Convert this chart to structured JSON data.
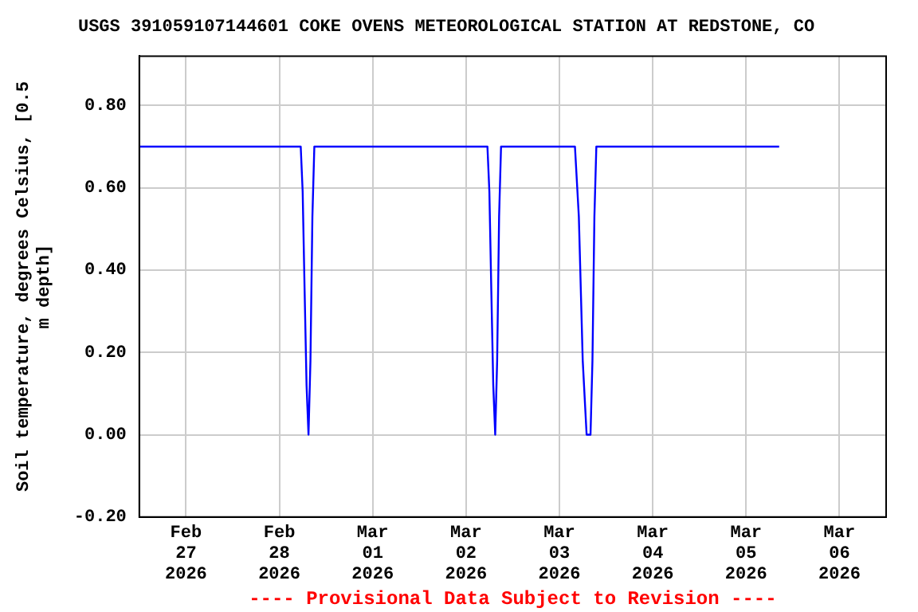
{
  "chart_data": {
    "type": "line",
    "title": "USGS 391059107144601 COKE OVENS METEOROLOGICAL STATION AT REDSTONE, CO",
    "ylabel": "Soil temperature, degrees Celsius, [0.5 m depth]",
    "annotations": [
      "---- Provisional Data Subject to Revision ----"
    ],
    "x": [
      "2026-02-26T12:00",
      "2026-02-28T05:30",
      "2026-02-28T06:00",
      "2026-02-28T06:30",
      "2026-02-28T07:00",
      "2026-02-28T07:30",
      "2026-02-28T08:00",
      "2026-02-28T08:30",
      "2026-02-28T09:00",
      "2026-03-02T05:30",
      "2026-03-02T06:00",
      "2026-03-02T06:30",
      "2026-03-02T07:00",
      "2026-03-02T07:30",
      "2026-03-02T08:00",
      "2026-03-02T08:30",
      "2026-03-02T09:00",
      "2026-03-03T04:00",
      "2026-03-03T05:00",
      "2026-03-03T06:00",
      "2026-03-03T07:00",
      "2026-03-03T08:00",
      "2026-03-03T08:30",
      "2026-03-03T09:00",
      "2026-03-03T09:30",
      "2026-03-05T08:30"
    ],
    "series": [
      {
        "color": "#0000ff",
        "values": [
          0.7,
          0.7,
          0.59,
          0.35,
          0.12,
          0.0,
          0.18,
          0.53,
          0.7,
          0.7,
          0.59,
          0.35,
          0.12,
          0.0,
          0.18,
          0.53,
          0.7,
          0.7,
          0.53,
          0.18,
          0.0,
          0.0,
          0.18,
          0.53,
          0.7,
          0.7
        ]
      }
    ],
    "xlim": [
      "2026-02-26T12:00",
      "2026-03-06T12:00"
    ],
    "xticks": [
      {
        "value": "2026-02-27",
        "label": "Feb 27 2026"
      },
      {
        "value": "2026-02-28",
        "label": "Feb 28 2026"
      },
      {
        "value": "2026-03-01",
        "label": "Mar 01 2026"
      },
      {
        "value": "2026-03-02",
        "label": "Mar 02 2026"
      },
      {
        "value": "2026-03-03",
        "label": "Mar 03 2026"
      },
      {
        "value": "2026-03-04",
        "label": "Mar 04 2026"
      },
      {
        "value": "2026-03-05",
        "label": "Mar 05 2026"
      },
      {
        "value": "2026-03-06",
        "label": "Mar 06 2026"
      }
    ],
    "ylim": [
      -0.2,
      0.92
    ],
    "yticks": [
      {
        "value": -0.2,
        "label": "-0.20"
      },
      {
        "value": 0,
        "label": "0.00"
      },
      {
        "value": 0.2,
        "label": "0.20"
      },
      {
        "value": 0.4,
        "label": "0.40"
      },
      {
        "value": 0.6,
        "label": "0.60"
      },
      {
        "value": 0.8,
        "label": "0.80"
      }
    ],
    "grid": true,
    "legend": false,
    "marker": "none",
    "line_style": "solid"
  }
}
